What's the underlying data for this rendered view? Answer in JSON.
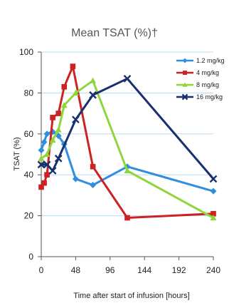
{
  "chart_data": {
    "type": "line",
    "title": "Mean TSAT (%)†",
    "xlabel": "Time after start of infusion [hours]",
    "ylabel": "TSAT (%)",
    "xlim": [
      0,
      240
    ],
    "ylim": [
      0,
      100
    ],
    "x_ticks": [
      {
        "value": 0,
        "label": "0"
      },
      {
        "value": 48,
        "label": "48"
      },
      {
        "value": 96,
        "label": "96"
      },
      {
        "value": 144,
        "label": "144"
      },
      {
        "value": 192,
        "label": "192"
      },
      {
        "value": 240,
        "label": "240"
      }
    ],
    "y_ticks": [
      {
        "value": 0,
        "label": "0"
      },
      {
        "value": 20,
        "label": "20"
      },
      {
        "value": 40,
        "label": "40"
      },
      {
        "value": 60,
        "label": "60"
      },
      {
        "value": 80,
        "label": "80"
      },
      {
        "value": 100,
        "label": "100"
      }
    ],
    "grid": true,
    "legend_position": "top-right",
    "series": [
      {
        "name": "1.2 mg/kg",
        "color": "#2e8ee0",
        "marker": "diamond",
        "points": [
          [
            0,
            52
          ],
          [
            4,
            56
          ],
          [
            8,
            60
          ],
          [
            16,
            61
          ],
          [
            24,
            59
          ],
          [
            32,
            55
          ],
          [
            48,
            38
          ],
          [
            72,
            35
          ],
          [
            120,
            44
          ],
          [
            240,
            32
          ]
        ]
      },
      {
        "name": "4 mg/kg",
        "color": "#cc2222",
        "marker": "square",
        "points": [
          [
            0,
            34
          ],
          [
            4,
            36
          ],
          [
            8,
            40
          ],
          [
            16,
            68
          ],
          [
            24,
            70
          ],
          [
            32,
            83
          ],
          [
            44,
            93
          ],
          [
            72,
            44
          ],
          [
            120,
            19
          ],
          [
            240,
            21
          ]
        ]
      },
      {
        "name": "8 mg/kg",
        "color": "#8ed63c",
        "marker": "triangle",
        "points": [
          [
            0,
            48
          ],
          [
            8,
            50
          ],
          [
            16,
            57
          ],
          [
            24,
            62
          ],
          [
            32,
            74
          ],
          [
            48,
            80
          ],
          [
            72,
            86
          ],
          [
            120,
            42
          ],
          [
            240,
            19
          ]
        ]
      },
      {
        "name": "16 mg/kg",
        "color": "#1a2f6e",
        "marker": "x",
        "points": [
          [
            0,
            45
          ],
          [
            8,
            45
          ],
          [
            16,
            42
          ],
          [
            24,
            48
          ],
          [
            48,
            67
          ],
          [
            72,
            79
          ],
          [
            120,
            87
          ],
          [
            240,
            38
          ]
        ]
      }
    ]
  }
}
